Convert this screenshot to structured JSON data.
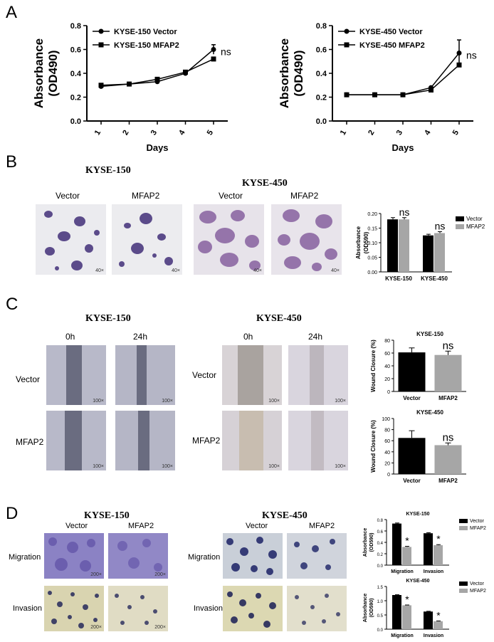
{
  "panels": {
    "A": "A",
    "B": "B",
    "C": "C",
    "D": "D"
  },
  "panelA": {
    "ns": "ns",
    "left_legend": [
      "KYSE-150 Vector",
      "KYSE-150 MFAP2"
    ],
    "right_legend": [
      "KYSE-450 Vector",
      "KYSE-450 MFAP2"
    ]
  },
  "panelB": {
    "kyse150": "KYSE-150",
    "kyse450": "KYSE-450",
    "vector": "Vector",
    "mfap2": "MFAP2",
    "mag": "40×",
    "ns": "ns"
  },
  "panelC": {
    "kyse150": "KYSE-150",
    "kyse450": "KYSE-450",
    "t0": "0h",
    "t24": "24h",
    "vector": "Vector",
    "mfap2": "MFAP2",
    "mag": "100×",
    "ns": "ns"
  },
  "panelD": {
    "kyse150": "KYSE-150",
    "kyse450": "KYSE-450",
    "vector": "Vector",
    "mfap2": "MFAP2",
    "migration": "Migration",
    "invasion": "Invasion",
    "mag": "200×",
    "star": "*"
  },
  "colors": {
    "vector": "#000000",
    "mfap2": "#a6a6a6"
  },
  "chart_data": [
    {
      "type": "line",
      "x": [
        1,
        2,
        3,
        4,
        5
      ],
      "xlabel": "Days",
      "ylabel": "Absorbance (OD490)",
      "ylim": [
        0,
        0.8
      ],
      "yticks": [
        "0.0",
        "0.2",
        "0.4",
        "0.6",
        "0.8"
      ],
      "series": [
        {
          "name": "KYSE-150 Vector",
          "values": [
            0.29,
            0.31,
            0.33,
            0.4,
            0.6
          ]
        },
        {
          "name": "KYSE-150 MFAP2",
          "values": [
            0.3,
            0.31,
            0.35,
            0.41,
            0.52
          ]
        }
      ]
    },
    {
      "type": "line",
      "x": [
        1,
        2,
        3,
        4,
        5
      ],
      "xlabel": "Days",
      "ylabel": "Absorbance (OD490)",
      "ylim": [
        0,
        0.8
      ],
      "yticks": [
        "0.0",
        "0.2",
        "0.4",
        "0.6",
        "0.8"
      ],
      "series": [
        {
          "name": "KYSE-450 Vector",
          "values": [
            0.22,
            0.22,
            0.22,
            0.28,
            0.57
          ]
        },
        {
          "name": "KYSE-450 MFAP2",
          "values": [
            0.22,
            0.22,
            0.22,
            0.26,
            0.47
          ]
        }
      ]
    },
    {
      "type": "bar",
      "categories": [
        "KYSE-150",
        "KYSE-450"
      ],
      "ylabel": "Absorbance (OD590)",
      "ylim": [
        0,
        0.2
      ],
      "yticks": [
        "0.00",
        "0.05",
        "0.10",
        "0.15",
        "0.20"
      ],
      "legend": "top-right",
      "series": [
        {
          "name": "Vector",
          "values": [
            0.18,
            0.125
          ]
        },
        {
          "name": "MFAP2",
          "values": [
            0.18,
            0.133
          ]
        }
      ]
    },
    {
      "type": "bar",
      "title": "KYSE-150",
      "categories": [
        "Vector",
        "MFAP2"
      ],
      "ylabel": "Wound Closure (%)",
      "ylim": [
        0,
        80
      ],
      "yticks": [
        "0",
        "20",
        "40",
        "60",
        "80"
      ],
      "values": [
        61,
        57
      ]
    },
    {
      "type": "bar",
      "title": "KYSE-450",
      "categories": [
        "Vector",
        "MFAP2"
      ],
      "ylabel": "Wound Closure (%)",
      "ylim": [
        0,
        100
      ],
      "yticks": [
        "0",
        "20",
        "40",
        "60",
        "80",
        "100"
      ],
      "values": [
        65,
        52
      ]
    },
    {
      "type": "bar",
      "title": "KYSE-150",
      "categories": [
        "Migration",
        "Invasion"
      ],
      "ylabel": "Absorbance (OD590)",
      "ylim": [
        0,
        0.8
      ],
      "yticks": [
        "0.0",
        "0.2",
        "0.4",
        "0.6",
        "0.8"
      ],
      "legend": "right",
      "series": [
        {
          "name": "Vector",
          "values": [
            0.73,
            0.56
          ]
        },
        {
          "name": "MFAP2",
          "values": [
            0.32,
            0.35
          ]
        }
      ]
    },
    {
      "type": "bar",
      "title": "KYSE-450",
      "categories": [
        "Migration",
        "Invasion"
      ],
      "ylabel": "Absorbance (OD590)",
      "ylim": [
        0,
        1.5
      ],
      "yticks": [
        "0.0",
        "0.5",
        "1.0",
        "1.5"
      ],
      "legend": "right",
      "series": [
        {
          "name": "Vector",
          "values": [
            1.2,
            0.62
          ]
        },
        {
          "name": "MFAP2",
          "values": [
            0.84,
            0.28
          ]
        }
      ]
    }
  ]
}
